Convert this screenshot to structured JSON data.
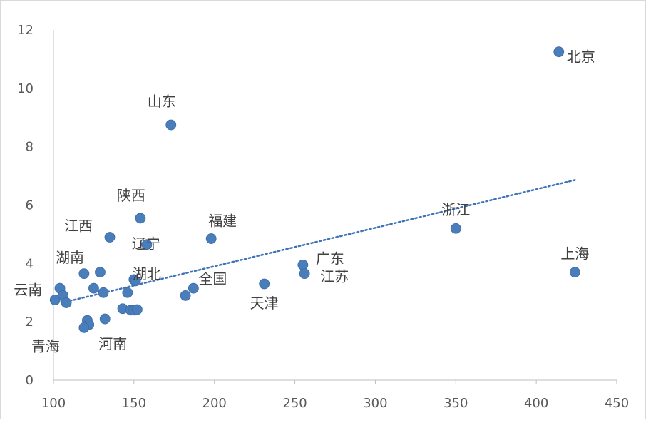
{
  "chart_data": {
    "type": "scatter",
    "title": "",
    "xlabel": "",
    "ylabel": "",
    "xlim": [
      100,
      450
    ],
    "ylim": [
      0,
      12
    ],
    "x_ticks": [
      100,
      150,
      200,
      250,
      300,
      350,
      400,
      450
    ],
    "y_ticks": [
      0,
      2,
      4,
      6,
      8,
      10,
      12
    ],
    "grid": false,
    "legend": "none",
    "colors": {
      "marker": "#4a7ebb",
      "trendline": "#3e74b6",
      "axis": "#bfbfbf",
      "tick_text": "#595959",
      "label_text": "#404040"
    },
    "trendline": {
      "style": "dotted",
      "type": "linear",
      "from": [
        105,
        2.65
      ],
      "to": [
        425,
        6.87
      ]
    },
    "points": [
      {
        "x": 414,
        "y": 11.25,
        "label": "北京"
      },
      {
        "x": 173,
        "y": 8.75,
        "label": "山东"
      },
      {
        "x": 154,
        "y": 5.55,
        "label": "陕西"
      },
      {
        "x": 135,
        "y": 4.9,
        "label": "江西"
      },
      {
        "x": 198,
        "y": 4.85,
        "label": "福建"
      },
      {
        "x": 158,
        "y": 4.65,
        "label": "辽宁"
      },
      {
        "x": 350,
        "y": 5.2,
        "label": "浙江"
      },
      {
        "x": 255,
        "y": 3.95,
        "label": "广东"
      },
      {
        "x": 256,
        "y": 3.65,
        "label": "江苏"
      },
      {
        "x": 424,
        "y": 3.7,
        "label": "上海"
      },
      {
        "x": 231,
        "y": 3.3,
        "label": "天津"
      },
      {
        "x": 187,
        "y": 3.15,
        "label": "全国"
      },
      {
        "x": 182,
        "y": 2.9,
        "label": ""
      },
      {
        "x": 150,
        "y": 3.45,
        "label": "湖北"
      },
      {
        "x": 151,
        "y": 3.4,
        "label": ""
      },
      {
        "x": 104,
        "y": 3.15,
        "label": "湖南"
      },
      {
        "x": 101,
        "y": 2.75,
        "label": "云南"
      },
      {
        "x": 106,
        "y": 2.9,
        "label": ""
      },
      {
        "x": 108,
        "y": 2.65,
        "label": ""
      },
      {
        "x": 119,
        "y": 3.65,
        "label": ""
      },
      {
        "x": 129,
        "y": 3.7,
        "label": ""
      },
      {
        "x": 125,
        "y": 3.15,
        "label": ""
      },
      {
        "x": 131,
        "y": 3.0,
        "label": ""
      },
      {
        "x": 146,
        "y": 3.0,
        "label": ""
      },
      {
        "x": 143,
        "y": 2.45,
        "label": ""
      },
      {
        "x": 148,
        "y": 2.4,
        "label": ""
      },
      {
        "x": 150,
        "y": 2.4,
        "label": ""
      },
      {
        "x": 152,
        "y": 2.42,
        "label": ""
      },
      {
        "x": 132,
        "y": 2.1,
        "label": "河南"
      },
      {
        "x": 121,
        "y": 2.05,
        "label": ""
      },
      {
        "x": 122,
        "y": 1.9,
        "label": ""
      },
      {
        "x": 119,
        "y": 1.8,
        "label": "青海"
      }
    ]
  }
}
